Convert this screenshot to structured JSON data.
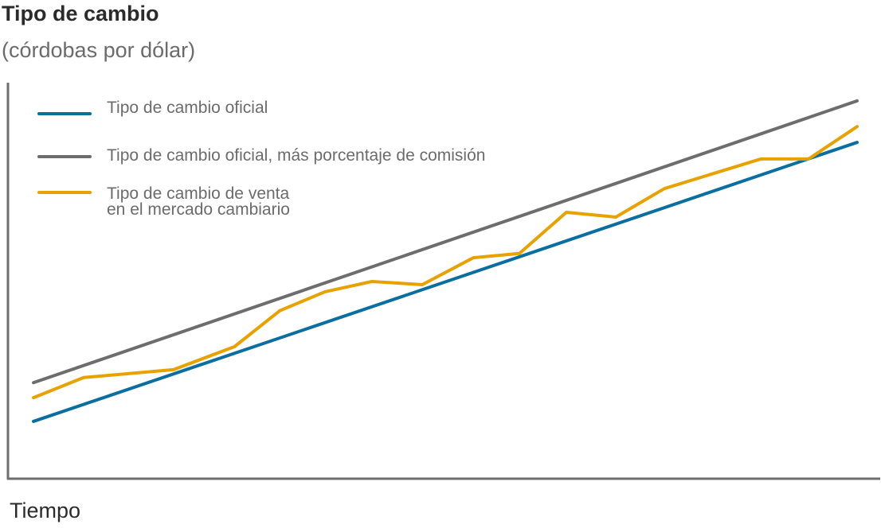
{
  "chart_data": {
    "type": "line",
    "title": "Tipo de cambio",
    "subtitle": "(córdobas por dólar)",
    "xlabel": "Tiempo",
    "ylabel": "",
    "xlim": [
      0,
      100
    ],
    "ylim": [
      0,
      100
    ],
    "grid": false,
    "legend_position": "top-left",
    "series": [
      {
        "name": "Tipo de cambio oficial",
        "color": "#0a6fa0",
        "x": [
          0,
          100
        ],
        "y": [
          14.5,
          85.1
        ]
      },
      {
        "name": "Tipo de cambio oficial, más porcentaje de comisión",
        "color": "#6d6d6d",
        "x": [
          0,
          100
        ],
        "y": [
          24.3,
          95.6
        ]
      },
      {
        "name_line1": "Tipo de cambio de venta",
        "name_line2": "en el mercado cambiario",
        "color": "#e8a200",
        "x": [
          0,
          6.1,
          17.0,
          24.4,
          29.9,
          35.4,
          41.1,
          47.2,
          53.4,
          59.0,
          64.7,
          70.7,
          76.6,
          88.3,
          94.1,
          100
        ],
        "y": [
          20.5,
          25.6,
          27.6,
          33.4,
          42.5,
          47.3,
          49.9,
          49.1,
          55.9,
          57.0,
          67.4,
          66.2,
          73.4,
          80.9,
          80.9,
          89.1
        ]
      }
    ]
  }
}
